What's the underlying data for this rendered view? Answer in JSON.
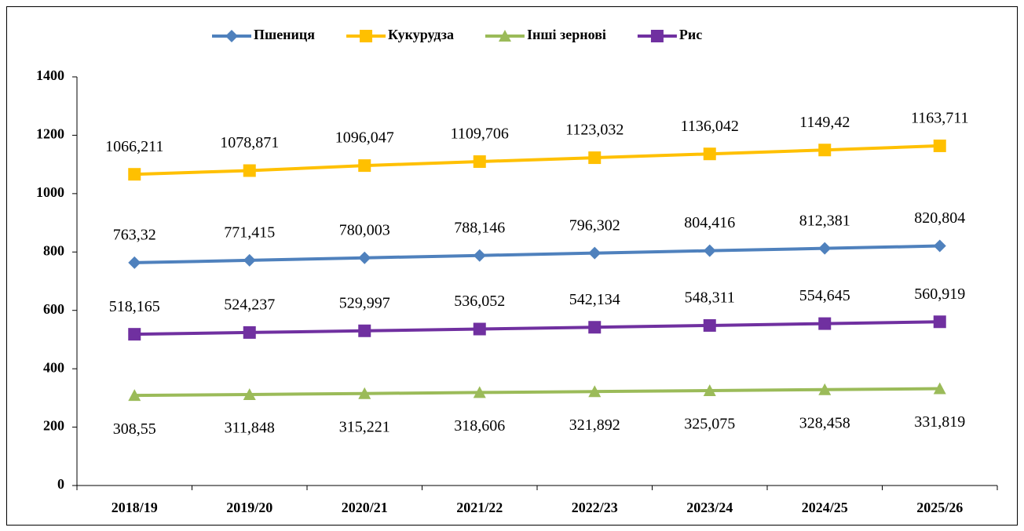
{
  "chart_data": {
    "type": "line",
    "categories": [
      "2018/19",
      "2019/20",
      "2020/21",
      "2021/22",
      "2022/23",
      "2023/24",
      "2024/25",
      "2025/26"
    ],
    "series": [
      {
        "name": "Пшениця",
        "color": "#4f81bd",
        "marker": "diamond",
        "label_position": "above",
        "values": [
          763.32,
          771.415,
          780.003,
          788.146,
          796.302,
          804.416,
          812.381,
          820.804
        ],
        "value_labels": [
          "763,32",
          "771,415",
          "780,003",
          "788,146",
          "796,302",
          "804,416",
          "812,381",
          "820,804"
        ]
      },
      {
        "name": "Кукурудза",
        "color": "#ffc000",
        "marker": "square",
        "label_position": "above",
        "values": [
          1066.211,
          1078.871,
          1096.047,
          1109.706,
          1123.032,
          1136.042,
          1149.42,
          1163.711
        ],
        "value_labels": [
          "1066,211",
          "1078,871",
          "1096,047",
          "1109,706",
          "1123,032",
          "1136,042",
          "1149,42",
          "1163,711"
        ]
      },
      {
        "name": "Інші зернові",
        "color": "#9bbb59",
        "marker": "triangle",
        "label_position": "below",
        "values": [
          308.55,
          311.848,
          315.221,
          318.606,
          321.892,
          325.075,
          328.458,
          331.819
        ],
        "value_labels": [
          "308,55",
          "311,848",
          "315,221",
          "318,606",
          "321,892",
          "325,075",
          "328,458",
          "331,819"
        ]
      },
      {
        "name": "Рис",
        "color": "#7030a0",
        "marker": "square",
        "label_position": "above",
        "values": [
          518.165,
          524.237,
          529.997,
          536.052,
          542.134,
          548.311,
          554.645,
          560.919
        ],
        "value_labels": [
          "518,165",
          "524,237",
          "529,997",
          "536,052",
          "542,134",
          "548,311",
          "554,645",
          "560,919"
        ]
      }
    ],
    "ylim": [
      0,
      1400
    ],
    "yticks": [
      0,
      200,
      400,
      600,
      800,
      1000,
      1200,
      1400
    ],
    "grid": false,
    "legend": "top"
  }
}
